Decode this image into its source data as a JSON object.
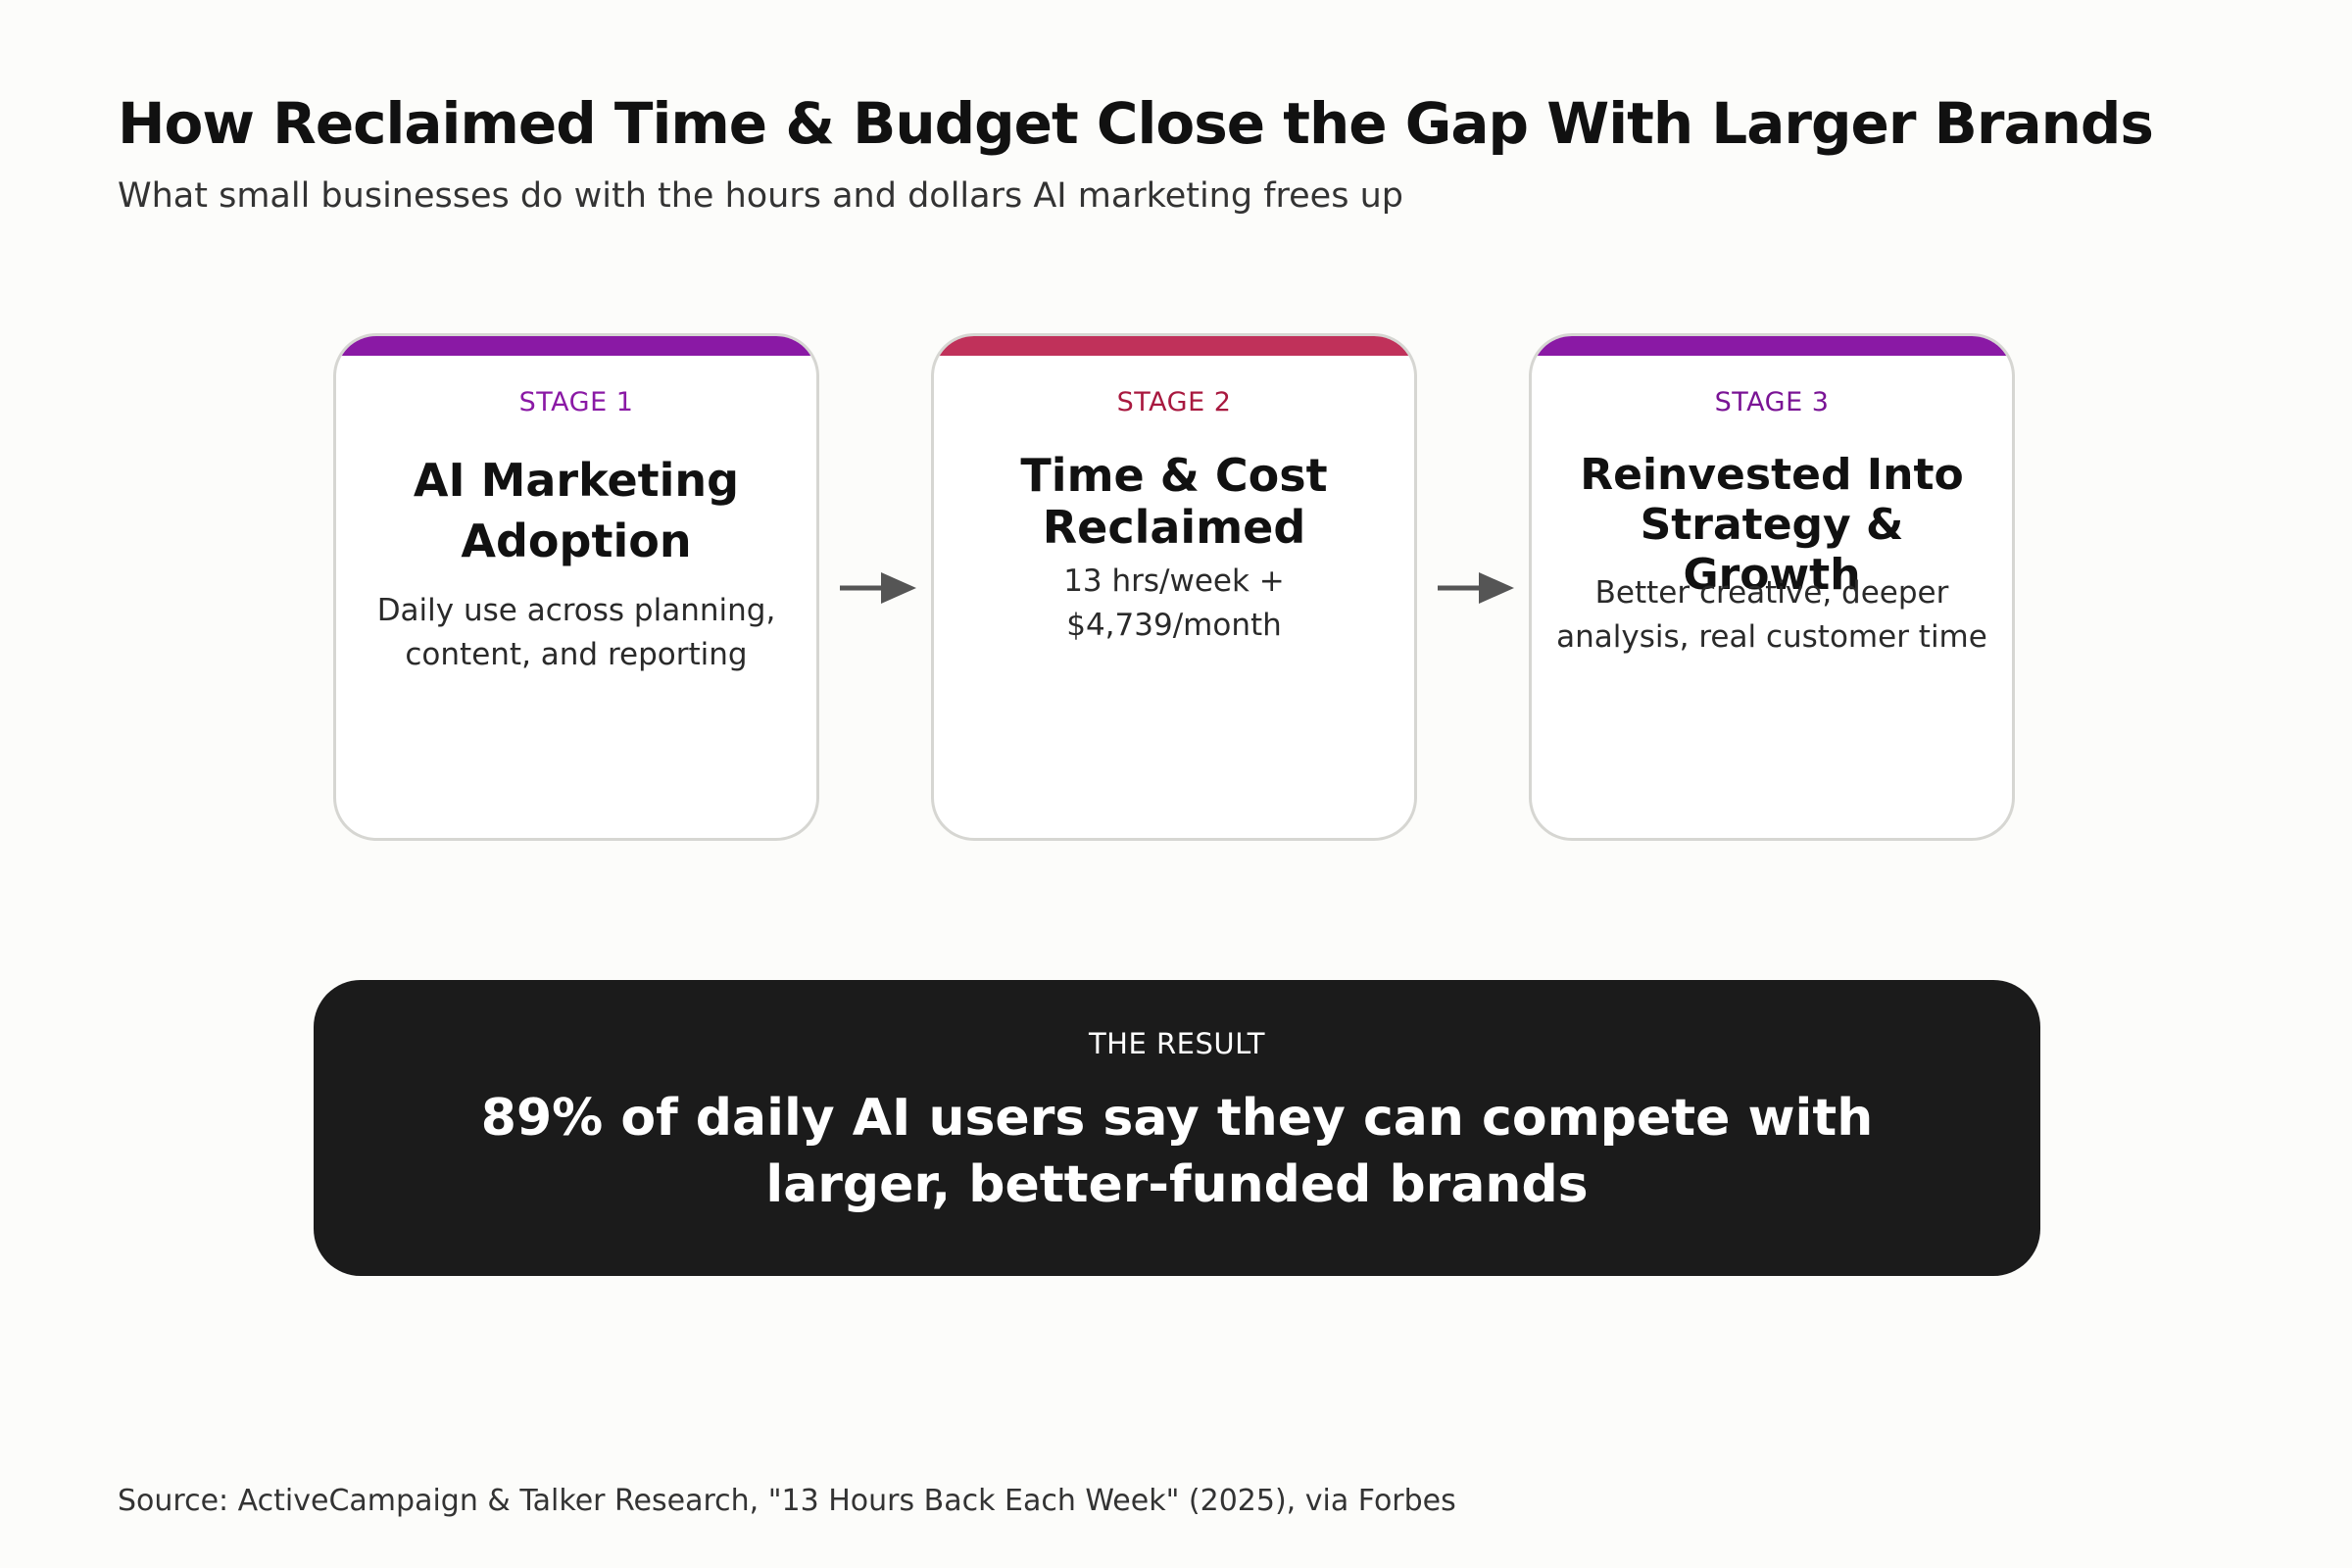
{
  "header": {
    "title": "How Reclaimed Time & Budget Close the Gap With Larger Brands",
    "subtitle": "What small businesses do with the hours and dollars AI marketing frees up"
  },
  "colors": {
    "purple": "#8a19a5",
    "crimson": "#c0315a",
    "dark_panel": "#1b1b1b",
    "arrow": "#555555"
  },
  "stages": [
    {
      "label": "STAGE 1",
      "heading": "AI Marketing Adoption",
      "desc_line1": "Daily use across planning,",
      "desc_line2": "content, and reporting"
    },
    {
      "label": "STAGE 2",
      "heading": "Time & Cost Reclaimed",
      "desc_line1": "13 hrs/week +",
      "desc_line2": "$4,739/month"
    },
    {
      "label": "STAGE 3",
      "heading": "Reinvested Into Strategy & Growth",
      "desc_line1": "Better creative, deeper",
      "desc_line2": "analysis, real customer time"
    }
  ],
  "result": {
    "label": "THE RESULT",
    "text": "89% of daily AI users say they can compete with larger, better-funded brands"
  },
  "source": "Source: ActiveCampaign & Talker Research, \"13 Hours Back Each Week\" (2025), via Forbes"
}
